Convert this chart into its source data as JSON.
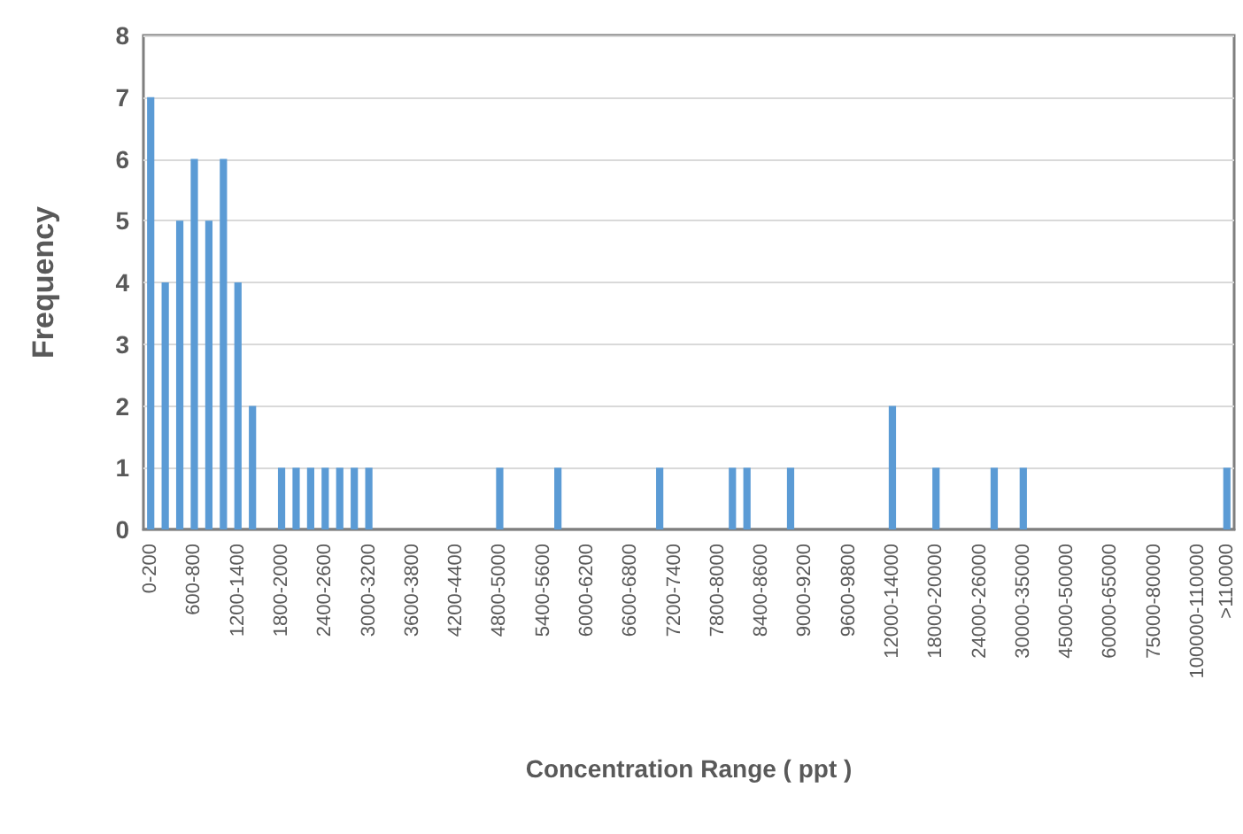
{
  "chart_data": {
    "type": "bar",
    "xlabel": "Concentration Range ( ppt )",
    "ylabel": "Frequency",
    "categories": [
      "0-200",
      null,
      null,
      "600-800",
      null,
      null,
      "1200-1400",
      null,
      null,
      "1800-2000",
      null,
      null,
      "2400-2600",
      null,
      null,
      "3000-3200",
      null,
      null,
      "3600-3800",
      null,
      null,
      "4200-4400",
      null,
      null,
      "4800-5000",
      null,
      null,
      "5400-5600",
      null,
      null,
      "6000-6200",
      null,
      null,
      "6600-6800",
      null,
      null,
      "7200-7400",
      null,
      null,
      "7800-8000",
      null,
      null,
      "8400-8600",
      null,
      null,
      "9000-9200",
      null,
      null,
      "9600-9800",
      null,
      null,
      "12000-14000",
      null,
      null,
      "18000-20000",
      null,
      null,
      "24000-26000",
      null,
      null,
      "30000-35000",
      null,
      null,
      "45000-50000",
      null,
      null,
      "60000-65000",
      null,
      null,
      "75000-80000",
      null,
      null,
      "100000-110000",
      null,
      ">110000"
    ],
    "values": [
      7,
      4,
      5,
      6,
      5,
      6,
      4,
      2,
      0,
      1,
      1,
      1,
      1,
      1,
      1,
      1,
      0,
      0,
      0,
      0,
      0,
      0,
      0,
      0,
      1,
      0,
      0,
      0,
      1,
      0,
      0,
      0,
      0,
      0,
      0,
      1,
      0,
      0,
      0,
      0,
      1,
      1,
      0,
      0,
      1,
      0,
      0,
      0,
      0,
      0,
      0,
      2,
      0,
      0,
      1,
      0,
      0,
      0,
      1,
      0,
      1,
      0,
      0,
      0,
      0,
      0,
      0,
      0,
      0,
      0,
      0,
      0,
      0,
      0,
      1
    ],
    "color": "#5b9bd5",
    "ylim": [
      0,
      8
    ],
    "yticks": [
      0,
      1,
      2,
      3,
      4,
      5,
      6,
      7,
      8
    ],
    "grid": "y"
  }
}
